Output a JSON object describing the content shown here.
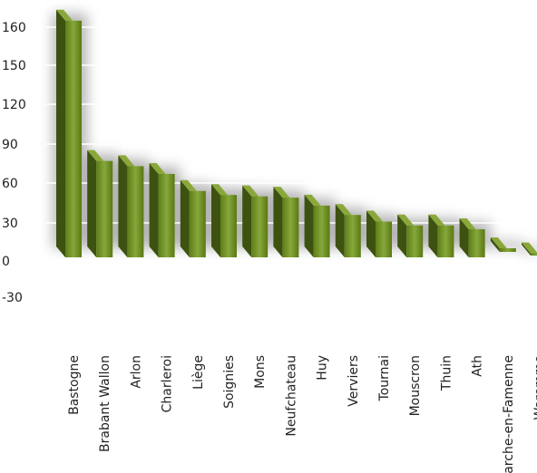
{
  "chart_data": {
    "type": "bar",
    "title": "",
    "xlabel": "",
    "ylabel": "",
    "categories": [
      "Bastogne",
      "Brabant Wallon",
      "Arlon",
      "Charleroi",
      "Liège",
      "Soignies",
      "Mons",
      "Neufchateau",
      "Huy",
      "Verviers",
      "Tournai",
      "Mouscron",
      "Thuin",
      "Ath",
      "Marche-en-Famenne",
      "Waremme"
    ],
    "series": [
      {
        "values": [
          168,
          77,
          73,
          67,
          54,
          51,
          50,
          49,
          43,
          36,
          31,
          28,
          28,
          25,
          10,
          6
        ]
      }
    ],
    "y_ticks": [
      160,
      150,
      120,
      90,
      60,
      30,
      0,
      -30
    ],
    "ylim": [
      -30,
      160
    ],
    "grid": true,
    "legend": "none",
    "colors": {
      "bar_front": "#6f8f1f",
      "bar_side": "#3d5210",
      "bar_top": "#8aa83a",
      "shadow": "#9a9a9a"
    }
  }
}
